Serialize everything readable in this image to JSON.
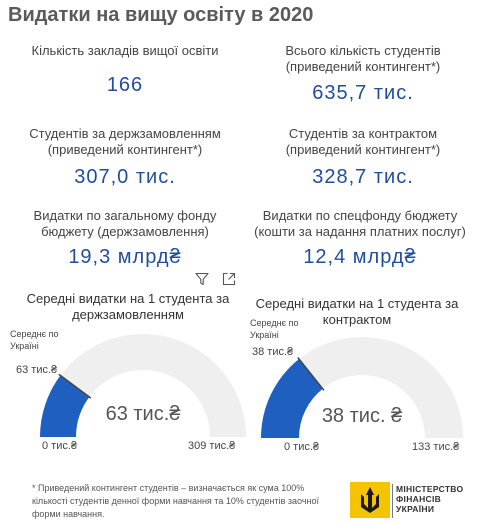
{
  "title": "Видатки на вищу освіту в 2020",
  "kpis": {
    "institutions": {
      "label": "Кількість закладів вищої освіти",
      "value": "166"
    },
    "students_total": {
      "label1": "Всього кількість студентів",
      "label2": "(приведений контингент*)",
      "value": "635,7 тис."
    },
    "students_state": {
      "label1": "Студентів за держзамовленням",
      "label2": "(приведений контингент*)",
      "value": "307,0 тис."
    },
    "students_contract": {
      "label1": "Студентів за контрактом",
      "label2": "(приведений контингент*)",
      "value": "328,7 тис."
    },
    "general_fund": {
      "label1": "Видатки по загальному фонду",
      "label2": "бюджету (держзамовлення)",
      "value": "19,3 млрд₴"
    },
    "special_fund": {
      "label1": "Видатки по спецфонду бюджету",
      "label2": "(кошти за надання платних послуг)",
      "value": "12,4 млрд₴"
    }
  },
  "gauges": [
    {
      "title1": "Середні видатки на 1 студента за",
      "title2": "держзамовленням",
      "avg_label1": "Середнє по",
      "avg_label2": "Україні",
      "avg_value": "63 тис.₴",
      "center_value": "63 тис.₴",
      "min_label": "0 тис.₴",
      "max_label": "309 тис.₴",
      "fraction": 0.2039
    },
    {
      "title1": "Середні видатки на 1 студента за",
      "title2": "контрактом",
      "avg_label1": "Середнє по",
      "avg_label2": "Україні",
      "avg_value": "38 тис.₴",
      "center_value": "38 тис. ₴",
      "min_label": "0 тис.₴",
      "max_label": "133 тис.₴",
      "fraction": 0.2857
    }
  ],
  "colors": {
    "accent": "#1f5fbf",
    "track": "#efefef",
    "value_text": "#1f4e9d"
  },
  "icons": {
    "filter": "filter-icon",
    "expand": "expand-icon"
  },
  "footnote": "* Приведений контингент студентів – визначається як сума 100% кількості студентів денної форми навчання та 10% студентів заочної форми навчання.",
  "logo": {
    "line1": "МІНІСТЕРСТВО",
    "line2": "ФІНАНСІВ",
    "line3": "УКРАЇНИ"
  }
}
